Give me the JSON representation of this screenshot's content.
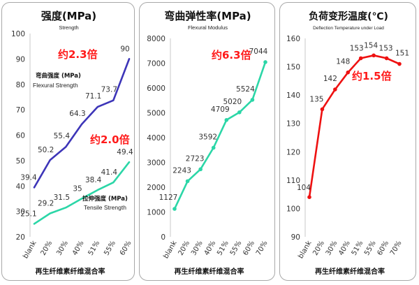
{
  "chart_data": [
    {
      "type": "line",
      "title": "强度(MPa)",
      "subtitle": "Strength",
      "xlabel": "再生纤维素纤维混合率",
      "categories": [
        "blank",
        "20%",
        "30%",
        "40%",
        "51%",
        "55%",
        "60%"
      ],
      "ylim": [
        20,
        100
      ],
      "yticks": [
        20,
        30,
        40,
        50,
        60,
        70,
        80,
        90,
        100
      ],
      "grid": false,
      "series": [
        {
          "name": "弯曲强度 (MPa)",
          "name_en": "Flexural Strength",
          "color": "#3d35b8",
          "values": [
            39.4,
            50.2,
            55.4,
            64.3,
            71.1,
            73.7,
            90
          ]
        },
        {
          "name": "拉伸强度 (MPa)",
          "name_en": "Tensile Strength",
          "color": "#2bd6a7",
          "values": [
            25.1,
            29.2,
            31.5,
            35.0,
            38.4,
            41.4,
            49.4
          ]
        }
      ],
      "annotations": [
        "约2.3倍",
        "约2.0倍"
      ]
    },
    {
      "type": "line",
      "title": "弯曲弹性率(MPa)",
      "subtitle": "Flexural Modulus",
      "xlabel": "再生纤维素纤维混合率",
      "categories": [
        "blank",
        "20%",
        "30%",
        "40%",
        "51%",
        "55%",
        "60%",
        "70%"
      ],
      "ylim": [
        0,
        8000
      ],
      "yticks": [
        0,
        1000,
        2000,
        3000,
        4000,
        5000,
        6000,
        7000,
        8000
      ],
      "grid": false,
      "series": [
        {
          "name": "",
          "color": "#2bd6a7",
          "values": [
            1127,
            2243,
            2723,
            3592,
            4709,
            5020,
            5524,
            7044
          ]
        }
      ],
      "annotations": [
        "约6.3倍"
      ]
    },
    {
      "type": "line",
      "title": "负荷变形温度(℃)",
      "subtitle": "Deflection Temperature under Load",
      "xlabel": "再生纤维素纤维混合率",
      "categories": [
        "blank",
        "20%",
        "30%",
        "40%",
        "51%",
        "55%",
        "60%",
        "70%"
      ],
      "ylim": [
        90,
        160
      ],
      "yticks": [
        90,
        100,
        110,
        120,
        130,
        140,
        150,
        160
      ],
      "grid": false,
      "series": [
        {
          "name": "",
          "color": "#ee1111",
          "values": [
            104,
            135,
            142,
            148,
            153,
            154,
            153,
            151
          ]
        }
      ],
      "annotations": [
        "约1.5倍"
      ]
    }
  ]
}
